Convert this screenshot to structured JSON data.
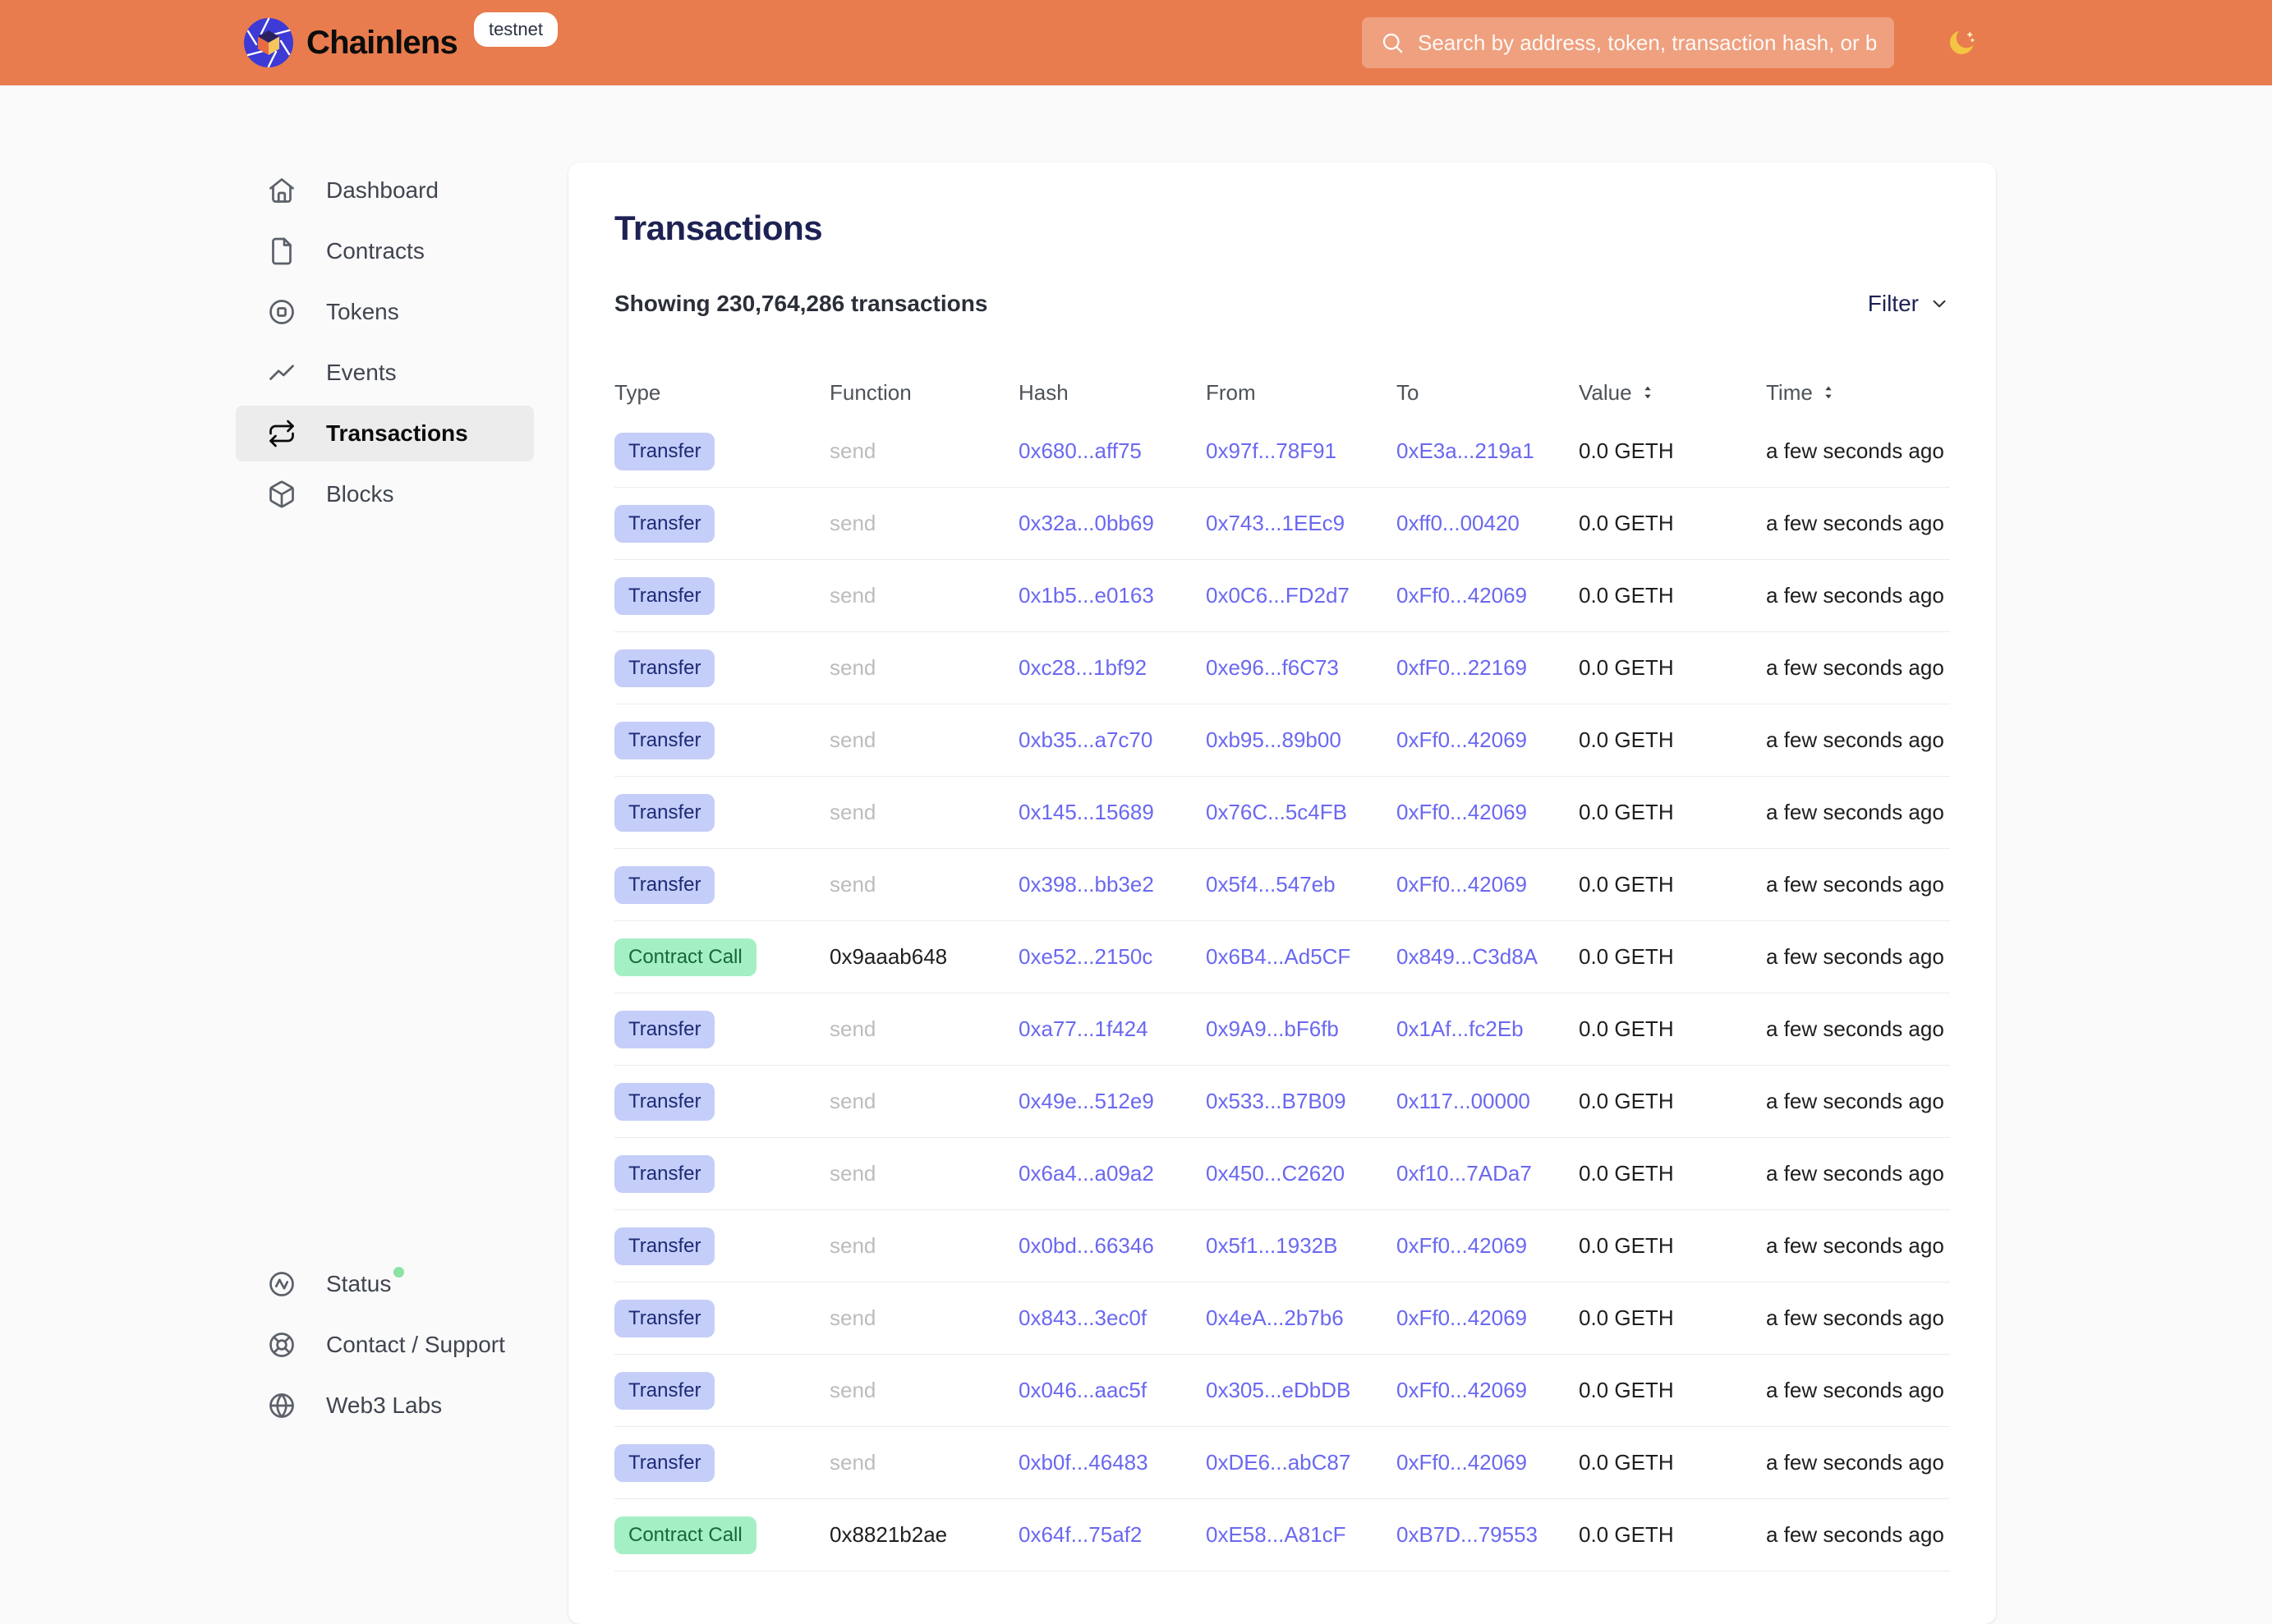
{
  "header": {
    "brand": "Chainlens",
    "network_badge": "testnet",
    "search_placeholder": "Search by address, token, transaction hash, or block number"
  },
  "sidebar": {
    "items": [
      {
        "id": "dashboard",
        "label": "Dashboard",
        "icon": "home",
        "active": false
      },
      {
        "id": "contracts",
        "label": "Contracts",
        "icon": "file",
        "active": false
      },
      {
        "id": "tokens",
        "label": "Tokens",
        "icon": "token",
        "active": false
      },
      {
        "id": "events",
        "label": "Events",
        "icon": "trend",
        "active": false
      },
      {
        "id": "transactions",
        "label": "Transactions",
        "icon": "repeat",
        "active": true
      },
      {
        "id": "blocks",
        "label": "Blocks",
        "icon": "cube",
        "active": false
      }
    ],
    "footer_items": [
      {
        "id": "status",
        "label": "Status",
        "icon": "status",
        "status_dot": true
      },
      {
        "id": "contact-support",
        "label": "Contact / Support",
        "icon": "lifebuoy",
        "status_dot": false
      },
      {
        "id": "web3-labs",
        "label": "Web3 Labs",
        "icon": "globe",
        "status_dot": false
      }
    ]
  },
  "main": {
    "title": "Transactions",
    "showing": "Showing 230,764,286 transactions",
    "filter_label": "Filter",
    "table": {
      "columns": [
        {
          "label": "Type",
          "sortable": false
        },
        {
          "label": "Function",
          "sortable": false
        },
        {
          "label": "Hash",
          "sortable": false
        },
        {
          "label": "From",
          "sortable": false
        },
        {
          "label": "To",
          "sortable": false
        },
        {
          "label": "Value",
          "sortable": true
        },
        {
          "label": "Time",
          "sortable": true
        }
      ],
      "rows": [
        {
          "type": "Transfer",
          "variant": "transfer",
          "function": "send",
          "hash": "0x680...aff75",
          "from": "0x97f...78F91",
          "to": "0xE3a...219a1",
          "value": "0.0 GETH",
          "time": "a few seconds ago"
        },
        {
          "type": "Transfer",
          "variant": "transfer",
          "function": "send",
          "hash": "0x32a...0bb69",
          "from": "0x743...1EEc9",
          "to": "0xff0...00420",
          "value": "0.0 GETH",
          "time": "a few seconds ago"
        },
        {
          "type": "Transfer",
          "variant": "transfer",
          "function": "send",
          "hash": "0x1b5...e0163",
          "from": "0x0C6...FD2d7",
          "to": "0xFf0...42069",
          "value": "0.0 GETH",
          "time": "a few seconds ago"
        },
        {
          "type": "Transfer",
          "variant": "transfer",
          "function": "send",
          "hash": "0xc28...1bf92",
          "from": "0xe96...f6C73",
          "to": "0xfF0...22169",
          "value": "0.0 GETH",
          "time": "a few seconds ago"
        },
        {
          "type": "Transfer",
          "variant": "transfer",
          "function": "send",
          "hash": "0xb35...a7c70",
          "from": "0xb95...89b00",
          "to": "0xFf0...42069",
          "value": "0.0 GETH",
          "time": "a few seconds ago"
        },
        {
          "type": "Transfer",
          "variant": "transfer",
          "function": "send",
          "hash": "0x145...15689",
          "from": "0x76C...5c4FB",
          "to": "0xFf0...42069",
          "value": "0.0 GETH",
          "time": "a few seconds ago"
        },
        {
          "type": "Transfer",
          "variant": "transfer",
          "function": "send",
          "hash": "0x398...bb3e2",
          "from": "0x5f4...547eb",
          "to": "0xFf0...42069",
          "value": "0.0 GETH",
          "time": "a few seconds ago"
        },
        {
          "type": "Contract Call",
          "variant": "contract-call",
          "function": "0x9aaab648",
          "hash": "0xe52...2150c",
          "from": "0x6B4...Ad5CF",
          "to": "0x849...C3d8A",
          "value": "0.0 GETH",
          "time": "a few seconds ago"
        },
        {
          "type": "Transfer",
          "variant": "transfer",
          "function": "send",
          "hash": "0xa77...1f424",
          "from": "0x9A9...bF6fb",
          "to": "0x1Af...fc2Eb",
          "value": "0.0 GETH",
          "time": "a few seconds ago"
        },
        {
          "type": "Transfer",
          "variant": "transfer",
          "function": "send",
          "hash": "0x49e...512e9",
          "from": "0x533...B7B09",
          "to": "0x117...00000",
          "value": "0.0 GETH",
          "time": "a few seconds ago"
        },
        {
          "type": "Transfer",
          "variant": "transfer",
          "function": "send",
          "hash": "0x6a4...a09a2",
          "from": "0x450...C2620",
          "to": "0xf10...7ADa7",
          "value": "0.0 GETH",
          "time": "a few seconds ago"
        },
        {
          "type": "Transfer",
          "variant": "transfer",
          "function": "send",
          "hash": "0x0bd...66346",
          "from": "0x5f1...1932B",
          "to": "0xFf0...42069",
          "value": "0.0 GETH",
          "time": "a few seconds ago"
        },
        {
          "type": "Transfer",
          "variant": "transfer",
          "function": "send",
          "hash": "0x843...3ec0f",
          "from": "0x4eA...2b7b6",
          "to": "0xFf0...42069",
          "value": "0.0 GETH",
          "time": "a few seconds ago"
        },
        {
          "type": "Transfer",
          "variant": "transfer",
          "function": "send",
          "hash": "0x046...aac5f",
          "from": "0x305...eDbDB",
          "to": "0xFf0...42069",
          "value": "0.0 GETH",
          "time": "a few seconds ago"
        },
        {
          "type": "Transfer",
          "variant": "transfer",
          "function": "send",
          "hash": "0xb0f...46483",
          "from": "0xDE6...abC87",
          "to": "0xFf0...42069",
          "value": "0.0 GETH",
          "time": "a few seconds ago"
        },
        {
          "type": "Contract Call",
          "variant": "contract-call",
          "function": "0x8821b2ae",
          "hash": "0x64f...75af2",
          "from": "0xE58...A81cF",
          "to": "0xB7D...79553",
          "value": "0.0 GETH",
          "time": "a few seconds ago"
        }
      ]
    }
  },
  "colors": {
    "header_bg": "#E87C4E",
    "link": "#6A68F0",
    "title": "#1E2253",
    "badge_transfer_bg": "#C5CEF8",
    "badge_transfer_text": "#1D2A76",
    "badge_contract_bg": "#A5EFC4",
    "badge_contract_text": "#15683C",
    "status_dot": "#8BE3A1",
    "moon": "#F4C542"
  }
}
